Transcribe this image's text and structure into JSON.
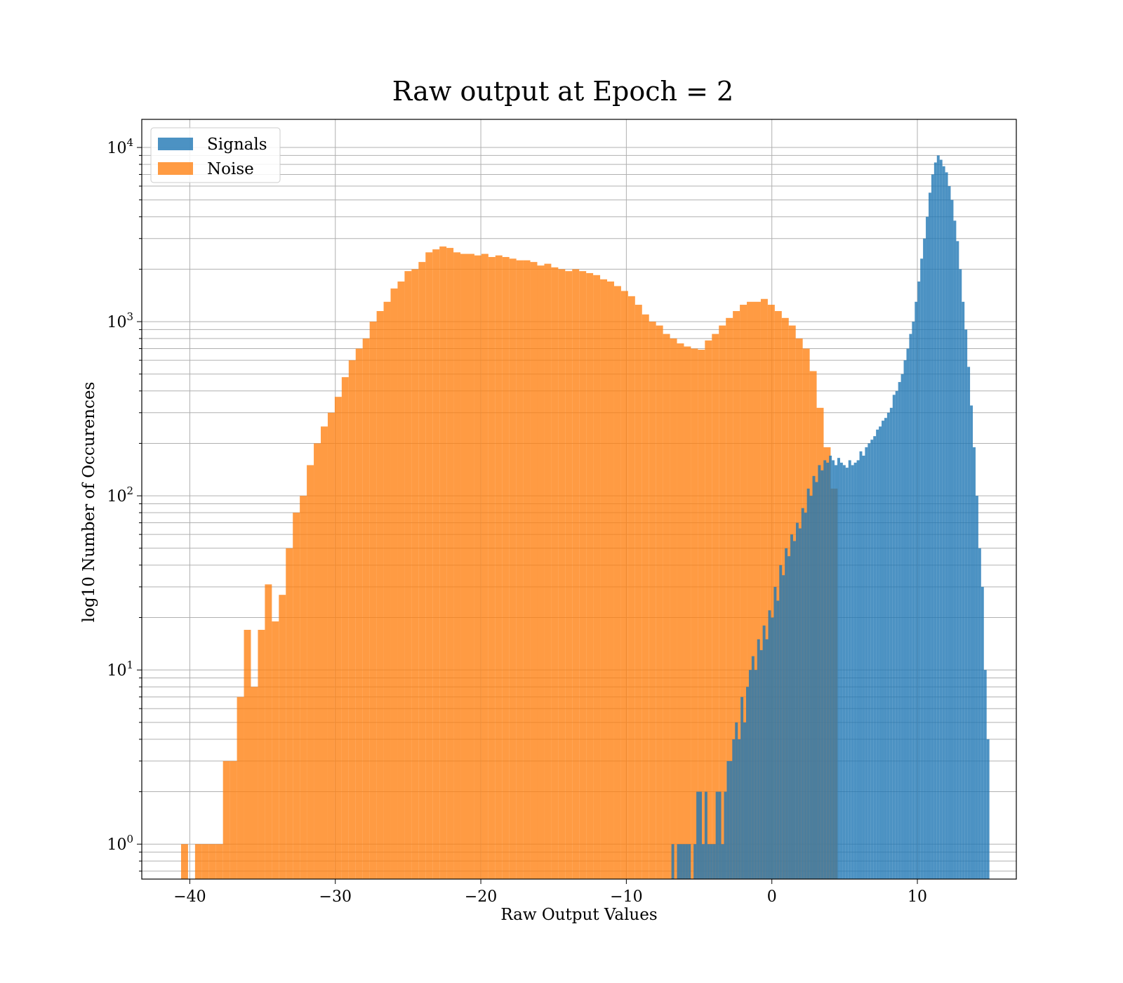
{
  "chart_data": {
    "type": "bar",
    "title": "Raw output at Epoch = 2",
    "xlabel": "Raw Output Values",
    "ylabel": "log10 Number of Occurences",
    "xlim": [
      -43.3,
      16.8
    ],
    "ylim": [
      0.63,
      14500
    ],
    "yscale": "log",
    "grid": true,
    "legend_position": "top-left",
    "x_ticks": [
      {
        "value": -40,
        "label": "−40"
      },
      {
        "value": -30,
        "label": "−30"
      },
      {
        "value": -20,
        "label": "−20"
      },
      {
        "value": -10,
        "label": "−10"
      },
      {
        "value": 0,
        "label": "0"
      },
      {
        "value": 10,
        "label": "10"
      }
    ],
    "y_ticks": [
      {
        "value": 1,
        "base": "10",
        "exp": "0"
      },
      {
        "value": 10,
        "base": "10",
        "exp": "1"
      },
      {
        "value": 100,
        "base": "10",
        "exp": "2"
      },
      {
        "value": 1000,
        "base": "10",
        "exp": "3"
      },
      {
        "value": 10000,
        "base": "10",
        "exp": "4"
      }
    ],
    "colors": {
      "Signals": "#1f77b4",
      "Noise": "#ff7f0e"
    },
    "series": [
      {
        "name": "Noise",
        "bin_start": -40.6,
        "bin_width": 0.48,
        "values": [
          1,
          0,
          1,
          1,
          1,
          1,
          3,
          3,
          7,
          17,
          8,
          17,
          31,
          19,
          27,
          50,
          80,
          100,
          150,
          200,
          250,
          300,
          370,
          480,
          600,
          700,
          800,
          1000,
          1150,
          1300,
          1550,
          1700,
          1950,
          2000,
          2200,
          2500,
          2600,
          2700,
          2650,
          2500,
          2450,
          2450,
          2400,
          2450,
          2350,
          2400,
          2350,
          2300,
          2250,
          2250,
          2200,
          2100,
          2150,
          2050,
          2000,
          1950,
          2000,
          1950,
          1900,
          1850,
          1750,
          1700,
          1600,
          1500,
          1400,
          1250,
          1100,
          1000,
          950,
          850,
          800,
          750,
          720,
          700,
          690,
          780,
          850,
          950,
          1050,
          1150,
          1250,
          1300,
          1300,
          1350,
          1250,
          1150,
          1050,
          950,
          800,
          700,
          520,
          320,
          190,
          110
        ]
      },
      {
        "name": "Signals",
        "bin_start": -6.9,
        "bin_width": 0.19,
        "values": [
          1,
          0,
          1,
          1,
          1,
          1,
          1,
          0,
          1,
          2,
          2,
          1,
          2,
          1,
          1,
          1,
          2,
          2,
          1,
          2,
          3,
          3,
          4,
          5,
          4,
          7,
          5,
          8,
          10,
          12,
          10,
          15,
          13,
          18,
          15,
          22,
          20,
          30,
          25,
          40,
          35,
          50,
          45,
          60,
          55,
          70,
          65,
          85,
          80,
          110,
          100,
          130,
          120,
          150,
          140,
          160,
          155,
          170,
          160,
          150,
          165,
          155,
          150,
          145,
          160,
          150,
          155,
          160,
          180,
          170,
          190,
          200,
          210,
          220,
          240,
          250,
          270,
          280,
          300,
          320,
          380,
          400,
          450,
          500,
          600,
          700,
          850,
          1000,
          1300,
          1700,
          2300,
          3000,
          4000,
          5500,
          7000,
          8200,
          9000,
          8500,
          7800,
          7200,
          6000,
          5000,
          3800,
          2900,
          2000,
          1300,
          900,
          550,
          330,
          190,
          100,
          50,
          30,
          10,
          4
        ]
      }
    ]
  }
}
